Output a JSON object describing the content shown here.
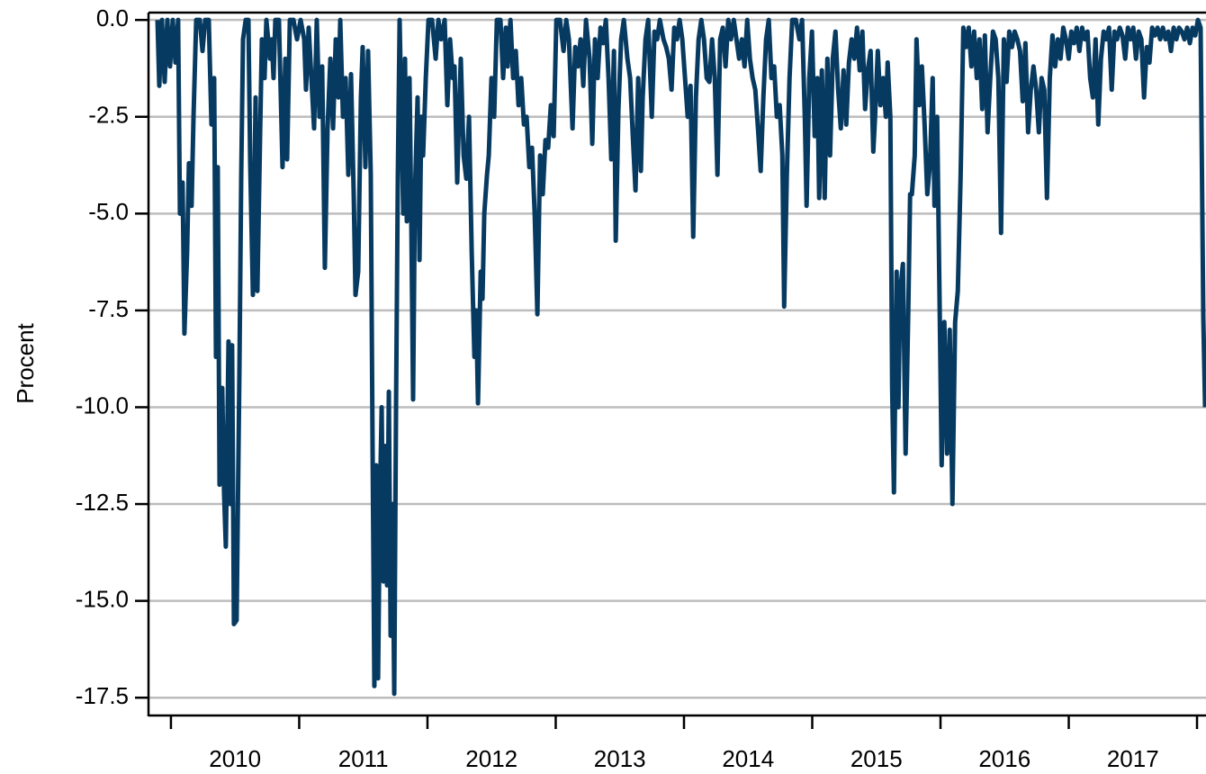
{
  "chart_data": {
    "type": "line",
    "ylabel": "Procent",
    "color": "#073a60",
    "grid": true,
    "xlim": [
      2009.825,
      2018.07
    ],
    "ylim": [
      -17.96,
      0.19
    ],
    "yticks": [
      {
        "value": 0,
        "label": "0.0"
      },
      -2.5,
      {
        "value": -5,
        "label": "-5.0"
      },
      -7.5,
      {
        "value": -10,
        "label": "-10.0"
      },
      -12.5,
      {
        "value": -15,
        "label": "-15.0"
      },
      -17.5
    ],
    "xticks": [
      {
        "value": 2010,
        "label": "2010"
      },
      {
        "value": 2011,
        "label": "2011"
      },
      {
        "value": 2012,
        "label": "2012"
      },
      {
        "value": 2013,
        "label": "2013"
      },
      {
        "value": 2014,
        "label": "2014"
      },
      {
        "value": 2015,
        "label": "2015"
      },
      {
        "value": 2016,
        "label": "2016"
      },
      {
        "value": 2017,
        "label": "2017"
      },
      2018
    ],
    "x": [
      2009.895,
      2009.909,
      2009.93,
      2009.951,
      2009.972,
      2009.993,
      2010.014,
      2010.035,
      2010.056,
      2010.07,
      2010.091,
      2010.105,
      2010.126,
      2010.14,
      2010.161,
      2010.176,
      2010.197,
      2010.225,
      2010.246,
      2010.267,
      2010.295,
      2010.316,
      2010.337,
      2010.351,
      2010.365,
      2010.379,
      2010.4,
      2010.414,
      2010.428,
      2010.449,
      2010.463,
      2010.477,
      2010.491,
      2010.512,
      2010.534,
      2010.548,
      2010.562,
      2010.583,
      2010.604,
      2010.618,
      2010.639,
      2010.66,
      2010.674,
      2010.695,
      2010.709,
      2010.73,
      2010.744,
      2010.772,
      2010.786,
      2010.8,
      2010.814,
      2010.842,
      2010.87,
      2010.892,
      2010.906,
      2010.927,
      2010.955,
      2010.983,
      2011.011,
      2011.039,
      2011.053,
      2011.074,
      2011.095,
      2011.116,
      2011.137,
      2011.158,
      2011.179,
      2011.2,
      2011.221,
      2011.243,
      2011.264,
      2011.285,
      2011.306,
      2011.32,
      2011.341,
      2011.362,
      2011.383,
      2011.404,
      2011.425,
      2011.439,
      2011.46,
      2011.481,
      2011.495,
      2011.516,
      2011.537,
      2011.558,
      2011.572,
      2011.586,
      2011.601,
      2011.615,
      2011.629,
      2011.643,
      2011.657,
      2011.671,
      2011.685,
      2011.699,
      2011.713,
      2011.727,
      2011.741,
      2011.755,
      2011.769,
      2011.783,
      2011.811,
      2011.825,
      2011.839,
      2011.86,
      2011.874,
      2011.888,
      2011.902,
      2011.923,
      2011.938,
      2011.952,
      2011.966,
      2011.987,
      2012.008,
      2012.036,
      2012.064,
      2012.085,
      2012.106,
      2012.134,
      2012.155,
      2012.176,
      2012.197,
      2012.211,
      2012.232,
      2012.246,
      2012.26,
      2012.282,
      2012.303,
      2012.324,
      2012.345,
      2012.366,
      2012.38,
      2012.394,
      2012.415,
      2012.429,
      2012.443,
      2012.464,
      2012.478,
      2012.499,
      2012.52,
      2012.541,
      2012.569,
      2012.59,
      2012.611,
      2012.625,
      2012.647,
      2012.668,
      2012.689,
      2012.71,
      2012.731,
      2012.752,
      2012.773,
      2012.794,
      2012.815,
      2012.836,
      2012.857,
      2012.878,
      2012.899,
      2012.92,
      2012.941,
      2012.962,
      2012.984,
      2013.005,
      2013.033,
      2013.061,
      2013.082,
      2013.103,
      2013.131,
      2013.152,
      2013.173,
      2013.194,
      2013.215,
      2013.236,
      2013.264,
      2013.285,
      2013.306,
      2013.327,
      2013.349,
      2013.37,
      2013.391,
      2013.412,
      2013.433,
      2013.454,
      2013.468,
      2013.489,
      2013.51,
      2013.531,
      2013.559,
      2013.58,
      2013.601,
      2013.622,
      2013.643,
      2013.664,
      2013.678,
      2013.7,
      2013.721,
      2013.749,
      2013.77,
      2013.791,
      2013.812,
      2013.84,
      2013.861,
      2013.882,
      2013.903,
      2013.924,
      2013.945,
      2013.966,
      2013.987,
      2014.008,
      2014.029,
      2014.051,
      2014.072,
      2014.093,
      2014.114,
      2014.135,
      2014.156,
      2014.177,
      2014.198,
      2014.219,
      2014.24,
      2014.261,
      2014.282,
      2014.303,
      2014.324,
      2014.345,
      2014.366,
      2014.388,
      2014.409,
      2014.43,
      2014.451,
      2014.472,
      2014.493,
      2014.514,
      2014.535,
      2014.556,
      2014.577,
      2014.598,
      2014.619,
      2014.64,
      2014.661,
      2014.682,
      2014.703,
      2014.724,
      2014.746,
      2014.767,
      2014.781,
      2014.802,
      2014.823,
      2014.844,
      2014.872,
      2014.9,
      2014.921,
      2014.942,
      2014.956,
      2014.977,
      2014.998,
      2015.019,
      2015.04,
      2015.054,
      2015.075,
      2015.097,
      2015.118,
      2015.139,
      2015.16,
      2015.181,
      2015.202,
      2015.223,
      2015.244,
      2015.265,
      2015.286,
      2015.307,
      2015.328,
      2015.349,
      2015.37,
      2015.391,
      2015.412,
      2015.433,
      2015.455,
      2015.476,
      2015.49,
      2015.511,
      2015.532,
      2015.553,
      2015.574,
      2015.588,
      2015.609,
      2015.623,
      2015.637,
      2015.658,
      2015.672,
      2015.686,
      2015.707,
      2015.728,
      2015.749,
      2015.763,
      2015.777,
      2015.799,
      2015.813,
      2015.834,
      2015.855,
      2015.876,
      2015.897,
      2015.918,
      2015.939,
      2015.953,
      2015.974,
      2015.995,
      2016.009,
      2016.03,
      2016.051,
      2016.072,
      2016.093,
      2016.114,
      2016.135,
      2016.157,
      2016.178,
      2016.199,
      2016.22,
      2016.241,
      2016.262,
      2016.283,
      2016.304,
      2016.325,
      2016.346,
      2016.367,
      2016.388,
      2016.409,
      2016.43,
      2016.451,
      2016.472,
      2016.494,
      2016.515,
      2016.536,
      2016.557,
      2016.578,
      2016.599,
      2016.62,
      2016.641,
      2016.662,
      2016.683,
      2016.704,
      2016.725,
      2016.746,
      2016.767,
      2016.788,
      2016.809,
      2016.83,
      2016.852,
      2016.873,
      2016.894,
      2016.915,
      2016.936,
      2016.957,
      2016.978,
      2016.999,
      2017.02,
      2017.041,
      2017.062,
      2017.083,
      2017.104,
      2017.125,
      2017.146,
      2017.167,
      2017.188,
      2017.209,
      2017.23,
      2017.251,
      2017.272,
      2017.293,
      2017.314,
      2017.335,
      2017.356,
      2017.377,
      2017.398,
      2017.419,
      2017.44,
      2017.461,
      2017.482,
      2017.503,
      2017.524,
      2017.545,
      2017.566,
      2017.587,
      2017.608,
      2017.629,
      2017.65,
      2017.671,
      2017.692,
      2017.713,
      2017.734,
      2017.755,
      2017.776,
      2017.797,
      2017.818,
      2017.839,
      2017.86,
      2017.881,
      2017.902,
      2017.923,
      2017.944,
      2017.965,
      2017.986,
      2018.007,
      2018.028,
      2018.049,
      2018.063
    ],
    "values": [
      0,
      -1.7,
      0,
      -1.6,
      0,
      -1.2,
      0,
      -1.1,
      0,
      -5,
      -4.2,
      -8.1,
      -6,
      -3.7,
      -4.8,
      -2.5,
      0,
      0,
      -0.8,
      0,
      0,
      -2.7,
      -1.5,
      -8.7,
      -3.8,
      -12,
      -9.5,
      -12.2,
      -13.6,
      -8.3,
      -12.5,
      -8.4,
      -15.6,
      -15.5,
      -9,
      -4,
      -0.5,
      0,
      0,
      -3.7,
      -7.1,
      -2,
      -7,
      -3,
      -0.5,
      -1.5,
      0,
      -1,
      -0.5,
      -1.5,
      0,
      0,
      -3.8,
      -1,
      -3.6,
      0,
      0,
      -0.5,
      0,
      -0.5,
      -1.8,
      -0.2,
      -1.5,
      -2.8,
      0,
      -2.5,
      -1.2,
      -6.4,
      -2.8,
      -1,
      -2.8,
      -0.5,
      -2,
      0,
      -2.5,
      -1.5,
      -4,
      -1.4,
      -4.5,
      -7.1,
      -6.5,
      -2,
      -0.7,
      -3.8,
      -0.8,
      -4,
      -11,
      -17.2,
      -11.5,
      -17,
      -12.5,
      -10,
      -14.5,
      -11,
      -14.6,
      -9.6,
      -15.9,
      -12.5,
      -17.4,
      -10,
      -4,
      0,
      -5,
      -1,
      -5.2,
      -1.5,
      -5.2,
      -9.8,
      -4.5,
      -2,
      -6.2,
      -2.5,
      -3.5,
      -1.5,
      0,
      0,
      -1,
      0,
      -0.5,
      0,
      -2.2,
      -0.5,
      -1.5,
      -1.2,
      -4.2,
      -2.5,
      -1,
      -3.5,
      -4.1,
      -2.5,
      -6,
      -8.7,
      -7.5,
      -9.9,
      -6.5,
      -7.2,
      -5,
      -4,
      -3.5,
      -1.5,
      -2.5,
      0,
      0,
      -1.5,
      -0.2,
      -1.2,
      0,
      -1.5,
      -0.8,
      -2.2,
      -1.5,
      -2.7,
      -2.5,
      -3.8,
      -3.3,
      -5,
      -7.6,
      -3.5,
      -4.5,
      -3.1,
      -3.3,
      -2.2,
      -3,
      0,
      0,
      -0.8,
      0,
      -0.5,
      -2.8,
      -0.7,
      -1.2,
      -0.5,
      -1.7,
      0,
      -1,
      -3.2,
      -0.5,
      -1.5,
      -0.2,
      -0.6,
      0,
      -1.5,
      -3.6,
      -0.8,
      -5.7,
      -2.3,
      -0.5,
      0,
      -1,
      -1.5,
      -3,
      -4.4,
      -1.5,
      -3.9,
      -2,
      -0.5,
      0,
      -2.5,
      -0.3,
      -0.5,
      0,
      -0.5,
      -0.7,
      -1,
      -1.8,
      -0.2,
      -0.5,
      0,
      -0.5,
      -1.5,
      -2.5,
      -1.7,
      -5.6,
      -2,
      -0.5,
      0,
      -0.5,
      -1.5,
      -1.6,
      -0.5,
      -1.5,
      -4,
      -0.5,
      -0.2,
      -1.2,
      0,
      -0.5,
      0,
      -0.5,
      -1,
      -0.5,
      -1.2,
      0,
      -1,
      -1.5,
      -1.8,
      -2.8,
      -3.9,
      -2,
      -0.5,
      0,
      -1.5,
      -1.2,
      -2.5,
      -2.2,
      -3.5,
      -7.4,
      -4,
      -1.5,
      0,
      0,
      -0.5,
      0,
      -2.5,
      -4.8,
      -1.5,
      -0.3,
      -3,
      -1.5,
      -4.6,
      -1.3,
      -4.6,
      -1,
      -3.5,
      -1,
      -0.3,
      -1.8,
      -2.8,
      -1.3,
      -2.7,
      -1.1,
      -0.5,
      -1,
      -0.2,
      -1.3,
      -0.3,
      -2.3,
      -1.3,
      -0.8,
      -3.4,
      -2.5,
      -0.8,
      -2.2,
      -1.5,
      -2.5,
      -1.1,
      -2.5,
      -9.5,
      -12.2,
      -6.5,
      -10,
      -7,
      -6.3,
      -11.2,
      -7.5,
      -4.5,
      -4.5,
      -3.5,
      -0.5,
      -2.2,
      -1.2,
      -2.7,
      -4.5,
      -3.7,
      -1.5,
      -4.8,
      -2.5,
      -7.8,
      -11.5,
      -7.8,
      -11.2,
      -8,
      -12.5,
      -7.8,
      -7,
      -4,
      -0.2,
      -0.7,
      -0.2,
      -1.2,
      -0.3,
      -1.5,
      -0.5,
      -2.3,
      -0.4,
      -2.9,
      -1.5,
      -0.3,
      -0.5,
      -1.5,
      -5.5,
      -0.5,
      -1.6,
      -0.3,
      -0.7,
      -0.3,
      -0.5,
      -0.8,
      -2.1,
      -0.6,
      -2.9,
      -1.8,
      -1.2,
      -1.8,
      -2.9,
      -1.5,
      -1.8,
      -4.6,
      -1.5,
      -0.4,
      -1.2,
      -0.5,
      -1,
      -0.2,
      -0.5,
      -1,
      -0.3,
      -0.6,
      -0.2,
      -0.8,
      -0.2,
      -0.5,
      -0.3,
      -1.5,
      -2,
      -0.5,
      -2.7,
      -1,
      -0.3,
      -0.5,
      -0.2,
      -1.8,
      -0.3,
      -0.5,
      -0.2,
      -0.4,
      -1,
      -0.2,
      -0.5,
      -0.2,
      -1,
      -0.3,
      -0.5,
      -2,
      -0.7,
      -1.1,
      -0.2,
      -0.4,
      -0.2,
      -0.5,
      -0.2,
      -0.5,
      -0.3,
      -0.8,
      -0.2,
      -0.5,
      -0.2,
      -0.3,
      -0.5,
      -0.2,
      -0.6,
      -0.2,
      -0.4,
      0,
      -0.2,
      -7.7,
      -10
    ]
  }
}
